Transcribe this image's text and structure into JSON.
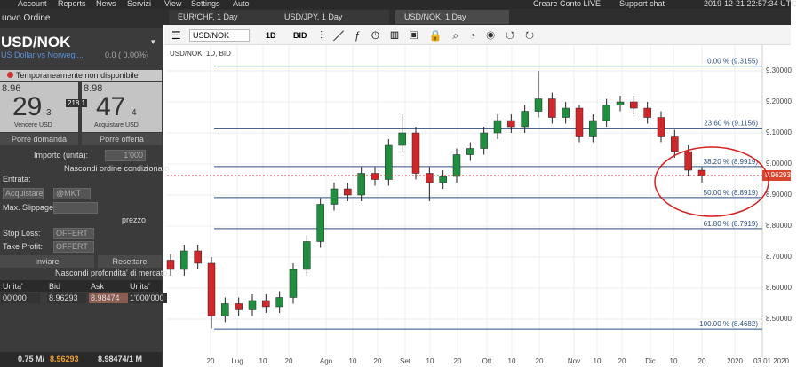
{
  "menu": {
    "items": [
      "Account",
      "Reports",
      "News",
      "Servizi",
      "View",
      "Settings",
      "Auto"
    ],
    "live": "Creare Conto LIVE",
    "support": "Support chat",
    "clock": "2019-12-21 22:57:34 UTC"
  },
  "tabs": [
    "EUR/CHF, 1 Day",
    "USD/JPY, 1 Day",
    "USD/NOK, 1 Day"
  ],
  "toolbar": {
    "symbol": "USD/NOK",
    "period": "1D",
    "side": "BID"
  },
  "order": {
    "header": "uovo Ordine",
    "symbol": "USD/NOK",
    "description": "US Dollar vs Norwegi...",
    "change": "0.0 ( 0.00%)",
    "notice": "Temporaneamente non disponibile",
    "sell": {
      "big_figure": "8.96",
      "pips": "29",
      "fraction": "3",
      "label": "Vendere USD"
    },
    "spread": "218.1",
    "buy": {
      "big_figure": "8.98",
      "pips": "47",
      "fraction": "4",
      "label": "Acquistare USD"
    },
    "bid_button": "Porre domanda",
    "offer_button": "Porre offerta",
    "amount_label": "Importo (unità):",
    "amount": "1'000",
    "hide_conditional": "Nascondi ordine condizionato",
    "entry_label": "Entrata:",
    "entry_side": "Acquistare",
    "entry_type": "@MKT",
    "slippage_label": "Max. Slippage:",
    "price_label": "prezzo",
    "stop_loss_label": "Stop Loss:",
    "stop_loss": "OFFERT",
    "take_profit_label": "Take Profit:",
    "take_profit": "OFFERT",
    "send": "Inviare",
    "reset": "Resettare",
    "hide_depth": "Nascondi profondita' di mercato",
    "depth": {
      "header": [
        "Unita'",
        "Bid",
        "Ask",
        "Unita'"
      ],
      "rows": [
        [
          "00'000",
          "8.96293",
          "8.98474",
          "1'000'000"
        ]
      ]
    },
    "footer": {
      "left": "0.75 M/",
      "bid": "8.96293",
      "right": "8.98474/1 M"
    }
  },
  "chart_data": {
    "type": "candlestick",
    "title": "USD/NOK, 1D, BID",
    "opens": [
      8.69,
      8.66,
      8.72,
      8.68,
      8.51,
      8.55,
      8.53,
      8.56,
      8.54,
      8.57,
      8.66,
      8.75,
      8.87,
      8.92,
      8.9,
      8.97,
      8.95,
      9.06,
      9.1,
      8.97,
      8.94,
      8.96,
      9.03,
      9.05,
      9.1,
      9.14,
      9.12,
      9.17,
      9.21,
      9.15,
      9.18,
      9.09,
      9.14,
      9.19,
      9.2,
      9.18,
      9.15,
      9.09,
      9.04,
      8.98
    ],
    "highs": [
      8.71,
      8.74,
      8.74,
      8.7,
      8.57,
      8.57,
      8.58,
      8.58,
      8.59,
      8.68,
      8.77,
      8.89,
      8.94,
      8.94,
      8.99,
      8.99,
      9.08,
      9.16,
      9.12,
      8.99,
      8.98,
      9.05,
      9.07,
      9.12,
      9.16,
      9.16,
      9.19,
      9.3,
      9.23,
      9.2,
      9.19,
      9.16,
      9.21,
      9.22,
      9.22,
      9.2,
      9.17,
      9.11,
      9.06,
      8.99
    ],
    "lows": [
      8.64,
      8.64,
      8.66,
      8.47,
      8.49,
      8.51,
      8.51,
      8.52,
      8.52,
      8.55,
      8.64,
      8.73,
      8.85,
      8.88,
      8.88,
      8.93,
      8.93,
      9.04,
      8.95,
      8.88,
      8.92,
      8.94,
      9.01,
      9.03,
      9.08,
      9.1,
      9.1,
      9.15,
      9.13,
      9.13,
      9.07,
      9.07,
      9.12,
      9.17,
      9.16,
      9.13,
      9.07,
      9.02,
      8.96,
      8.94
    ],
    "closes": [
      8.66,
      8.72,
      8.68,
      8.51,
      8.55,
      8.53,
      8.56,
      8.54,
      8.57,
      8.66,
      8.75,
      8.87,
      8.92,
      8.9,
      8.97,
      8.95,
      9.06,
      9.1,
      8.97,
      8.94,
      8.96,
      9.03,
      9.05,
      9.1,
      9.14,
      9.12,
      9.17,
      9.21,
      9.15,
      9.18,
      9.09,
      9.14,
      9.19,
      9.2,
      9.18,
      9.15,
      9.09,
      9.04,
      8.98,
      8.963
    ],
    "up_color": "#1f8f3f",
    "down_color": "#d0282a",
    "level_color": "#2d4f82",
    "ylim": [
      8.377,
      9.383
    ],
    "yticks": [
      {
        "value": 8.5,
        "label": "8.50000"
      },
      {
        "value": 8.6,
        "label": "8.60000"
      },
      {
        "value": 8.7,
        "label": "8.70000"
      },
      {
        "value": 8.8,
        "label": "8.80000"
      },
      {
        "value": 8.9,
        "label": "8.90000"
      },
      {
        "value": 9.0,
        "label": "9.00000"
      },
      {
        "value": 9.1,
        "label": "9.10000"
      },
      {
        "value": 9.2,
        "label": "9.20000"
      },
      {
        "value": 9.3,
        "label": "9.30000"
      }
    ],
    "xtick_labels": [
      "20",
      "Lug",
      "10",
      "20",
      "Ago",
      "10",
      "20",
      "Set",
      "10",
      "20",
      "Ott",
      "10",
      "20",
      "Nov",
      "10",
      "20",
      "Dic",
      "10",
      "20",
      "2020"
    ],
    "cursor_date": "03.01.2020",
    "levels": [
      {
        "value": 9.3155,
        "label": "0.00 % (9.3155)"
      },
      {
        "value": 9.1156,
        "label": "23.60 % (9.1156)"
      },
      {
        "value": 8.9919,
        "label": "38.20 % (8.9919)"
      },
      {
        "value": 8.8919,
        "label": "50.00 % (8.8919)"
      },
      {
        "value": 8.7919,
        "label": "61.80 % (8.7919)"
      },
      {
        "value": 8.4682,
        "label": "100.00 % (8.4682)"
      }
    ],
    "last_price": 8.96293,
    "grid": true
  }
}
